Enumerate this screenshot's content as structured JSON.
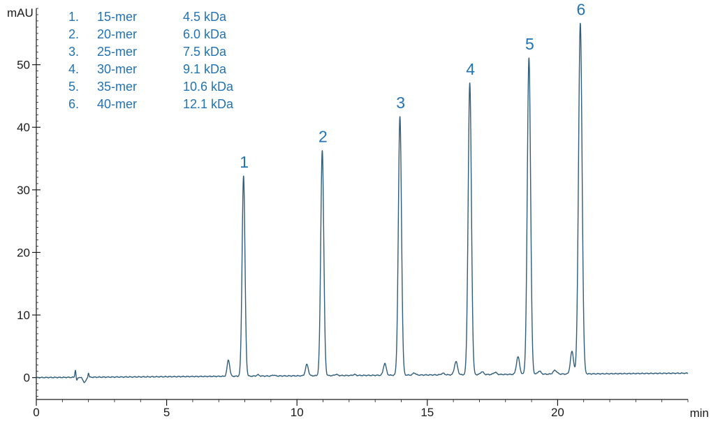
{
  "chart_data": {
    "type": "line",
    "title": "",
    "xlabel": "min",
    "ylabel": "mAU",
    "xlim": [
      0,
      25
    ],
    "ylim": [
      -3.5,
      59
    ],
    "x_ticks": [
      0,
      5,
      10,
      15,
      20
    ],
    "x_minor_step": 1,
    "y_ticks": [
      0,
      10,
      20,
      30,
      40,
      50
    ],
    "y_minor_step": 1,
    "grid": false,
    "line_color": "#2f5d7c",
    "label_color": "#2273b5",
    "baseline_start": 0.0,
    "baseline_end": 0.7,
    "injection_disturbance": [
      {
        "x": 1.5,
        "h": 1.3,
        "w": 0.02
      },
      {
        "x": 1.55,
        "h": -0.5,
        "w": 0.03
      },
      {
        "x": 1.85,
        "h": -0.8,
        "w": 0.06
      },
      {
        "x": 2.0,
        "h": 0.7,
        "w": 0.02
      }
    ],
    "peaks": [
      {
        "label": "1",
        "x": 7.95,
        "height": 32.0,
        "width": 0.055
      },
      {
        "label": "2",
        "x": 10.97,
        "height": 36.0,
        "width": 0.058
      },
      {
        "label": "3",
        "x": 13.95,
        "height": 41.3,
        "width": 0.06
      },
      {
        "label": "4",
        "x": 16.63,
        "height": 46.6,
        "width": 0.062
      },
      {
        "label": "5",
        "x": 18.9,
        "height": 50.6,
        "width": 0.063
      },
      {
        "label": "6",
        "x": 20.87,
        "height": 56.0,
        "width": 0.068
      }
    ],
    "minor_peaks": [
      {
        "x": 7.37,
        "height": 2.6,
        "width": 0.05
      },
      {
        "x": 10.38,
        "height": 1.8,
        "width": 0.055
      },
      {
        "x": 13.37,
        "height": 1.9,
        "width": 0.055
      },
      {
        "x": 16.1,
        "height": 2.1,
        "width": 0.06
      },
      {
        "x": 18.48,
        "height": 2.8,
        "width": 0.06
      },
      {
        "x": 20.55,
        "height": 3.6,
        "width": 0.06
      },
      {
        "x": 8.5,
        "height": 0.2,
        "width": 0.05
      },
      {
        "x": 9.1,
        "height": 0.15,
        "width": 0.05
      },
      {
        "x": 11.5,
        "height": 0.2,
        "width": 0.05
      },
      {
        "x": 12.2,
        "height": 0.15,
        "width": 0.05
      },
      {
        "x": 14.5,
        "height": 0.35,
        "width": 0.05
      },
      {
        "x": 15.6,
        "height": 0.25,
        "width": 0.06
      },
      {
        "x": 17.1,
        "height": 0.45,
        "width": 0.06
      },
      {
        "x": 17.6,
        "height": 0.35,
        "width": 0.06
      },
      {
        "x": 19.3,
        "height": 0.5,
        "width": 0.06
      },
      {
        "x": 19.9,
        "height": 0.6,
        "width": 0.07
      }
    ],
    "legend": [
      {
        "number": "1.",
        "name": "15-mer",
        "mass": "4.5 kDa"
      },
      {
        "number": "2.",
        "name": "20-mer",
        "mass": "6.0 kDa"
      },
      {
        "number": "3.",
        "name": "25-mer",
        "mass": "7.5 kDa"
      },
      {
        "number": "4.",
        "name": "30-mer",
        "mass": "9.1 kDa"
      },
      {
        "number": "5.",
        "name": "35-mer",
        "mass": "10.6 kDa"
      },
      {
        "number": "6.",
        "name": "40-mer",
        "mass": "12.1 kDa"
      }
    ],
    "legend_position": "top-left"
  }
}
